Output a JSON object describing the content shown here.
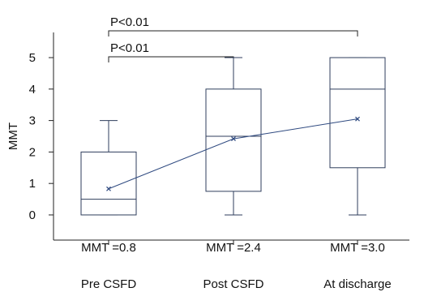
{
  "chart_data": {
    "type": "box",
    "ylabel": "MMT",
    "ylim": [
      -0.8,
      5.8
    ],
    "yticks": [
      0,
      1,
      2,
      3,
      4,
      5
    ],
    "categories": [
      "Pre CSFD",
      "Post CSFD",
      "At discharge"
    ],
    "boxes": [
      {
        "category": "Pre CSFD",
        "min": 0,
        "q1": 0,
        "median": 0.5,
        "q3": 2,
        "max": 3,
        "mean": 0.83,
        "mean_label": "MMT =0.8"
      },
      {
        "category": "Post CSFD",
        "min": 0,
        "q1": 0.75,
        "median": 2.5,
        "q3": 4,
        "max": 5,
        "mean": 2.42,
        "mean_label": "MMT =2.4"
      },
      {
        "category": "At discharge",
        "min": 0,
        "q1": 1.5,
        "median": 4,
        "q3": 5,
        "max": 5,
        "mean": 3.05,
        "mean_label": "MMT =3.0"
      }
    ],
    "significance": [
      {
        "from": "Pre CSFD",
        "to": "Post CSFD",
        "label": "P<0.01"
      },
      {
        "from": "Pre CSFD",
        "to": "At discharge",
        "label": "P<0.01"
      }
    ],
    "colors": {
      "box": "#2f3e5c",
      "mean_line": "#2f4a80",
      "axis": "#222222"
    }
  }
}
